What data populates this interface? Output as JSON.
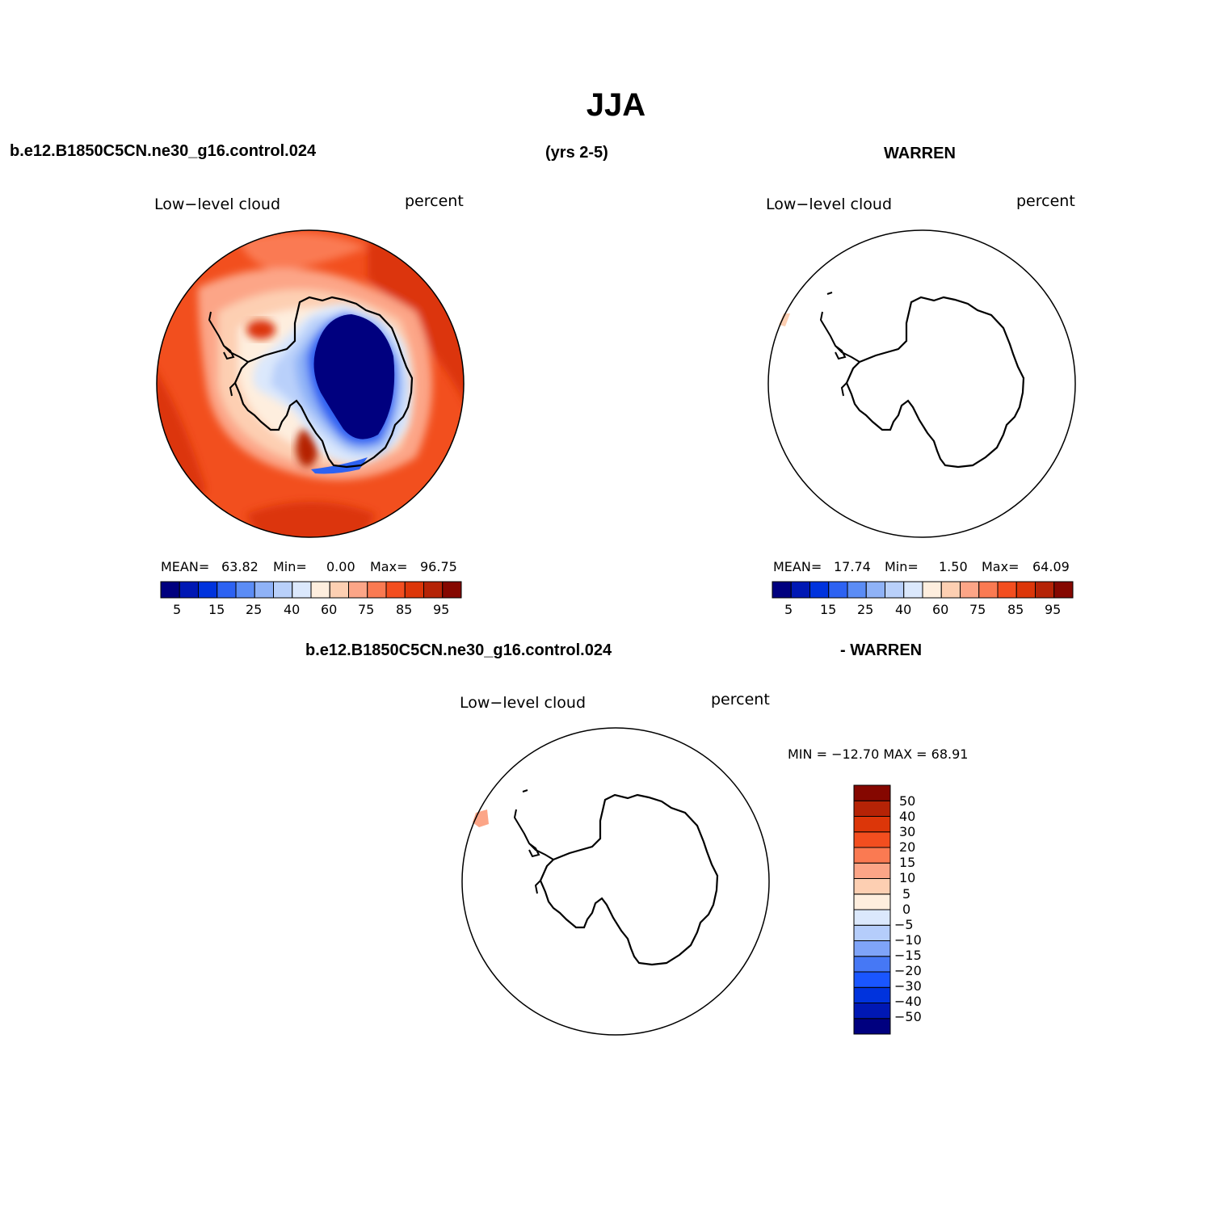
{
  "title": "JJA",
  "header": {
    "left": "b.e12.B1850C5CN.ne30_g16.control.024",
    "center": "(yrs 2-5)",
    "right": "WARREN"
  },
  "diff_header": {
    "left": "b.e12.B1850C5CN.ne30_g16.control.024",
    "right": "- WARREN"
  },
  "panels": [
    {
      "id": "model",
      "variable": "Low−level cloud",
      "units": "percent",
      "stats": {
        "mean_label": "MEAN=",
        "mean": "63.82",
        "min_label": "Min=",
        "min": "0.00",
        "max_label": "Max=",
        "max": "96.75"
      }
    },
    {
      "id": "obs",
      "variable": "Low−level cloud",
      "units": "percent",
      "stats": {
        "mean_label": "MEAN=",
        "mean": "17.74",
        "min_label": "Min=",
        "min": "1.50",
        "max_label": "Max=",
        "max": "64.09"
      }
    },
    {
      "id": "diff",
      "variable": "Low−level cloud",
      "units": "percent",
      "minmax": "MIN = −12.70  MAX =   68.91"
    }
  ],
  "colorbar_abs": {
    "colors": [
      "#00007f",
      "#0018b4",
      "#0033dd",
      "#2d62f2",
      "#5b8cf5",
      "#8fb2f7",
      "#b9d0fa",
      "#dbe8fc",
      "#feeede",
      "#fdcfb2",
      "#fca587",
      "#fa7a52",
      "#f34e1f",
      "#dc3609",
      "#b52306",
      "#850700"
    ],
    "tick_labels": [
      "5",
      "15",
      "25",
      "40",
      "60",
      "75",
      "85",
      "95"
    ]
  },
  "colorbar_diff": {
    "colors": [
      "#00007f",
      "#0018b4",
      "#0033dd",
      "#1a56ff",
      "#4678f5",
      "#7fa4f8",
      "#b5cdfb",
      "#dbe8fc",
      "#feeede",
      "#fdcfb2",
      "#fca587",
      "#fa7a52",
      "#f34e1f",
      "#dc3609",
      "#b52306",
      "#850700"
    ],
    "tick_labels": [
      "−50",
      "−40",
      "−30",
      "−20",
      "−15",
      "−10",
      "−5",
      "0",
      "5",
      "10",
      "15",
      "20",
      "30",
      "40",
      "50"
    ]
  }
}
